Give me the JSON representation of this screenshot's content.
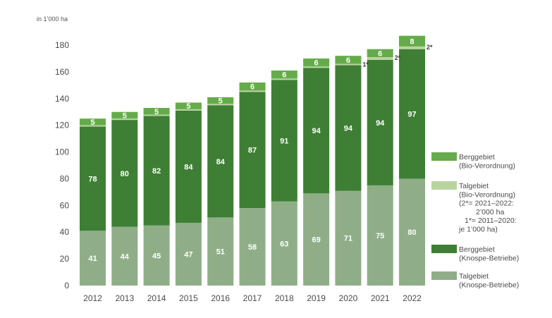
{
  "chart_data": {
    "type": "bar",
    "stacked": true,
    "unit_label": "in 1’000 ha",
    "categories": [
      "2012",
      "2013",
      "2014",
      "2015",
      "2016",
      "2017",
      "2018",
      "2019",
      "2020",
      "2021",
      "2022"
    ],
    "ylim": [
      0,
      190
    ],
    "yticks": [
      0,
      20,
      40,
      60,
      80,
      100,
      120,
      140,
      160,
      180
    ],
    "grid": false,
    "legend_position": "right",
    "series": [
      {
        "name": "Talgebiet (Knospe-Betriebe)",
        "legend_lines": [
          "Talgebiet",
          "(Knospe-Betriebe)"
        ],
        "color": "#8fae88",
        "values": [
          41,
          44,
          45,
          47,
          51,
          58,
          63,
          69,
          71,
          75,
          80
        ],
        "labels": [
          "41",
          "44",
          "45",
          "47",
          "51",
          "58",
          "63",
          "69",
          "71",
          "75",
          "80"
        ]
      },
      {
        "name": "Berggebiet (Knospe-Betriebe)",
        "legend_lines": [
          "Berggebiet",
          "(Knospe-Betriebe)"
        ],
        "color": "#3f7e35",
        "values": [
          78,
          80,
          82,
          84,
          84,
          87,
          91,
          94,
          94,
          94,
          97
        ],
        "labels": [
          "78",
          "80",
          "82",
          "84",
          "84",
          "87",
          "91",
          "94",
          "94",
          "94",
          "97"
        ]
      },
      {
        "name": "Talgebiet (Bio-Verordnung)",
        "legend_lines": [
          "Talgebiet",
          "(Bio-Verordnung)",
          "(2*= 2021–2022:",
          "2’000 ha",
          "1*= 2011–2020:",
          "je 1’000 ha)"
        ],
        "color": "#b8d59f",
        "values": [
          1,
          1,
          1,
          1,
          1,
          1,
          1,
          1,
          1,
          2,
          2
        ],
        "labels": [
          "",
          "",
          "",
          "",
          "",
          "",
          "",
          "",
          "",
          "",
          ""
        ]
      },
      {
        "name": "Berggebiet (Bio-Verordnung)",
        "legend_lines": [
          "Berggebiet",
          "(Bio-Verordnung)"
        ],
        "color": "#66ab4b",
        "values": [
          5,
          5,
          5,
          5,
          5,
          6,
          6,
          6,
          6,
          6,
          8
        ],
        "labels": [
          "5",
          "5",
          "5",
          "5",
          "5",
          "6",
          "6",
          "6",
          "6",
          "6",
          "8"
        ]
      }
    ],
    "annotations": [
      {
        "category": "2020",
        "text": "1*"
      },
      {
        "category": "2021",
        "text": "2*"
      },
      {
        "category": "2022",
        "text": "2*"
      }
    ]
  }
}
